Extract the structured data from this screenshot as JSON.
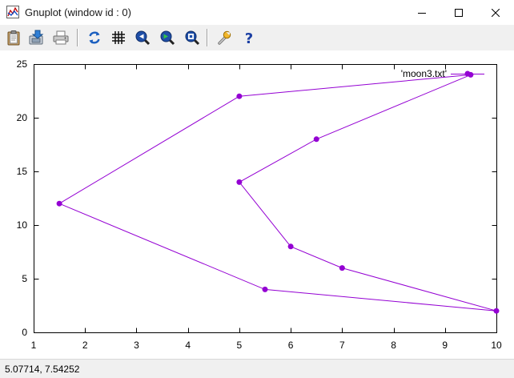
{
  "window": {
    "title": "Gnuplot (window id : 0)"
  },
  "toolbar": {
    "buttons": [
      {
        "name": "copy-to-clipboard",
        "icon": "clipboard-icon"
      },
      {
        "name": "save",
        "icon": "save-icon"
      },
      {
        "name": "print",
        "icon": "printer-icon"
      },
      {
        "name": "replot",
        "icon": "refresh-icon"
      },
      {
        "name": "grid",
        "icon": "grid-icon"
      },
      {
        "name": "previous-zoom",
        "icon": "zoom-back-icon"
      },
      {
        "name": "next-zoom",
        "icon": "zoom-forward-icon"
      },
      {
        "name": "autoscale",
        "icon": "zoom-fit-icon"
      },
      {
        "name": "options",
        "icon": "wrench-icon"
      },
      {
        "name": "help",
        "icon": "help-icon"
      }
    ]
  },
  "status": {
    "coordinates": "5.07714,  7.54252"
  },
  "chart_data": {
    "type": "line",
    "title": "",
    "xlabel": "",
    "ylabel": "",
    "xlim": [
      1,
      10
    ],
    "ylim": [
      0,
      25
    ],
    "xticks": [
      "1",
      "2",
      "3",
      "4",
      "5",
      "6",
      "7",
      "8",
      "9",
      "10"
    ],
    "yticks": [
      "0",
      "5",
      "10",
      "15",
      "20",
      "25"
    ],
    "grid": false,
    "legend_position": "top-right",
    "color": "#9400d3",
    "series": [
      {
        "name": "'moon3.txt'",
        "points": [
          [
            5,
            22
          ],
          [
            9.5,
            24
          ],
          [
            6.5,
            18
          ],
          [
            5,
            14
          ],
          [
            6,
            8
          ],
          [
            7,
            6
          ],
          [
            10,
            2
          ],
          [
            5.5,
            4
          ],
          [
            1.5,
            12
          ],
          [
            5,
            22
          ]
        ]
      }
    ]
  }
}
